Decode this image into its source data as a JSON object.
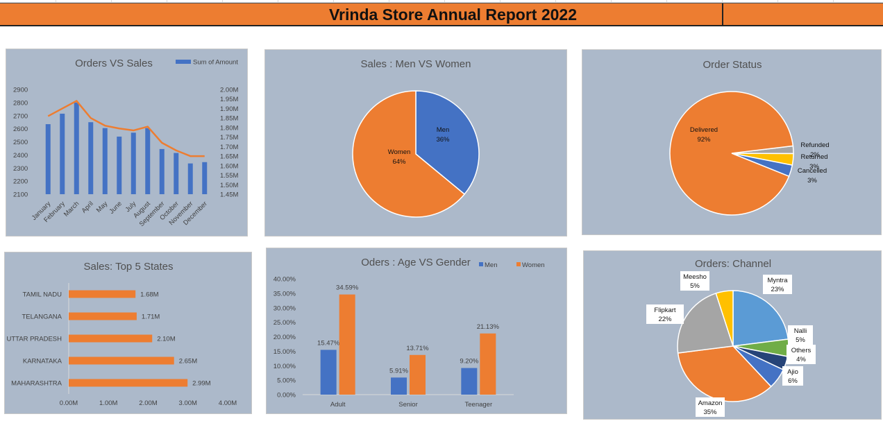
{
  "title": "Vrinda Store Annual Report 2022",
  "colors": {
    "title_bg": "#ed7d31",
    "panel_bg": "#acb9ca",
    "blue": "#4472c4",
    "orange": "#ed7d31",
    "gray": "#a5a5a5",
    "gold": "#ffc000",
    "lightblue": "#5b9bd5",
    "green": "#70ad47",
    "navy": "#264478"
  },
  "chart_data": [
    {
      "id": "orders_vs_sales",
      "type": "bar",
      "title": "Orders VS Sales",
      "legend": "Sum of Amount",
      "categories": [
        "January",
        "February",
        "March",
        "April",
        "May",
        "June",
        "July",
        "August",
        "September",
        "October",
        "November",
        "December"
      ],
      "series": [
        {
          "name": "Sum of Amount",
          "type": "bar",
          "axis": "left",
          "values": [
            2635,
            2715,
            2800,
            2650,
            2605,
            2540,
            2570,
            2605,
            2445,
            2415,
            2335,
            2345
          ]
        },
        {
          "type": "line",
          "axis": "right",
          "values": [
            1.86,
            1.9,
            1.94,
            1.85,
            1.81,
            1.795,
            1.785,
            1.805,
            1.72,
            1.68,
            1.65,
            1.65
          ]
        }
      ],
      "y_left_ticks": [
        "2100",
        "2200",
        "2300",
        "2400",
        "2500",
        "2600",
        "2700",
        "2800",
        "2900"
      ],
      "y_right_ticks": [
        "1.45M",
        "1.50M",
        "1.55M",
        "1.60M",
        "1.65M",
        "1.70M",
        "1.75M",
        "1.80M",
        "1.85M",
        "1.90M",
        "1.95M",
        "2.00M"
      ],
      "ylim_left": [
        2100,
        2900
      ],
      "ylim_right": [
        1.45,
        2.0
      ]
    },
    {
      "id": "sales_men_women",
      "type": "pie",
      "title": "Sales : Men VS Women",
      "slices": [
        {
          "name": "Men",
          "value": 36,
          "label": "36%"
        },
        {
          "name": "Women",
          "value": 64,
          "label": "64%"
        }
      ]
    },
    {
      "id": "order_status",
      "type": "pie",
      "title": "Order Status",
      "slices": [
        {
          "name": "Delivered",
          "value": 92,
          "label": "92%"
        },
        {
          "name": "Refunded",
          "value": 2,
          "label": "2%"
        },
        {
          "name": "Returned",
          "value": 3,
          "label": "3%"
        },
        {
          "name": "Cancelled",
          "value": 3,
          "label": "3%"
        }
      ]
    },
    {
      "id": "top_states",
      "type": "bar",
      "orientation": "horizontal",
      "title": "Sales: Top 5 States",
      "categories": [
        "TAMIL NADU",
        "TELANGANA",
        "UTTAR PRADESH",
        "KARNATAKA",
        "MAHARASHTRA"
      ],
      "values": [
        1.68,
        1.71,
        2.1,
        2.65,
        2.99
      ],
      "value_labels": [
        "1.68M",
        "1.71M",
        "2.10M",
        "2.65M",
        "2.99M"
      ],
      "x_ticks": [
        "0.00M",
        "1.00M",
        "2.00M",
        "3.00M",
        "4.00M"
      ],
      "xlim": [
        0,
        4
      ]
    },
    {
      "id": "age_vs_gender",
      "type": "bar",
      "title": "Oders : Age VS Gender",
      "categories": [
        "Adult",
        "Senior",
        "Teenager"
      ],
      "series": [
        {
          "name": "Men",
          "values": [
            15.47,
            5.91,
            9.2
          ],
          "labels": [
            "15.47%",
            "5.91%",
            "9.20%"
          ]
        },
        {
          "name": "Women",
          "values": [
            34.59,
            13.71,
            21.13
          ],
          "labels": [
            "34.59%",
            "13.71%",
            "21.13%"
          ]
        }
      ],
      "y_ticks": [
        "0.00%",
        "5.00%",
        "10.00%",
        "15.00%",
        "20.00%",
        "25.00%",
        "30.00%",
        "35.00%",
        "40.00%"
      ],
      "ylim": [
        0,
        40
      ]
    },
    {
      "id": "orders_channel",
      "type": "pie",
      "title": "Orders: Channel",
      "slices": [
        {
          "name": "Myntra",
          "value": 23,
          "label": "23%"
        },
        {
          "name": "Nalli",
          "value": 5,
          "label": "5%"
        },
        {
          "name": "Others",
          "value": 4,
          "label": "4%"
        },
        {
          "name": "Ajio",
          "value": 6,
          "label": "6%"
        },
        {
          "name": "Amazon",
          "value": 35,
          "label": "35%"
        },
        {
          "name": "Flipkart",
          "value": 22,
          "label": "22%"
        },
        {
          "name": "Meesho",
          "value": 5,
          "label": "5%"
        }
      ]
    }
  ]
}
